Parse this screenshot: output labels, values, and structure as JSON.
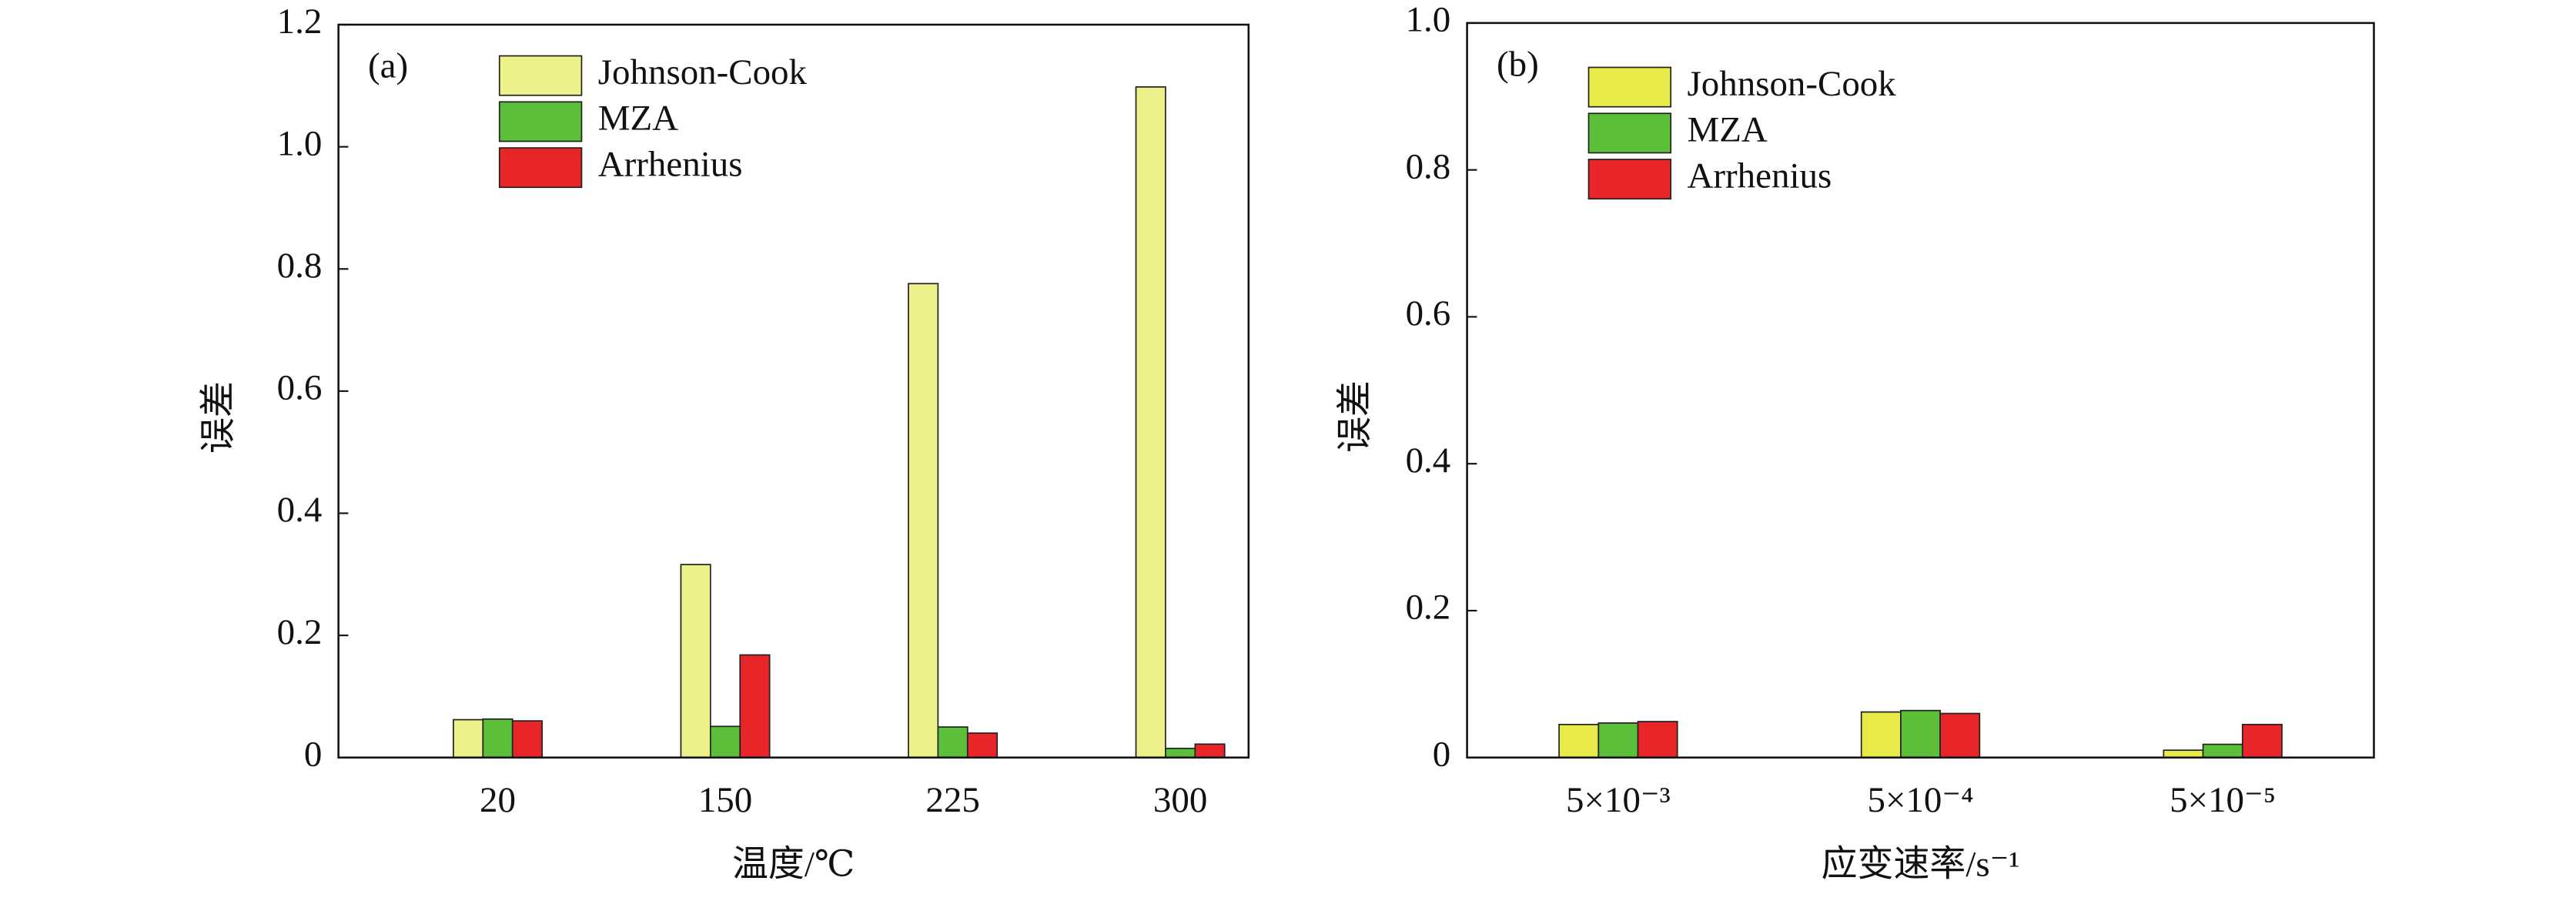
{
  "chart_data": [
    {
      "type": "bar",
      "panel": "(a)",
      "xlabel": "温度/℃",
      "ylabel": "误差",
      "categories": [
        "20",
        "150",
        "225",
        "300"
      ],
      "series": [
        {
          "name": "Johnson-Cook",
          "color": "#eef08a",
          "values": [
            0.062,
            0.316,
            0.776,
            1.098
          ]
        },
        {
          "name": "MZA",
          "color": "#5cbf3a",
          "values": [
            0.063,
            0.051,
            0.05,
            0.015
          ]
        },
        {
          "name": "Arrhenius",
          "color": "#e8262a",
          "values": [
            0.06,
            0.168,
            0.04,
            0.022
          ]
        }
      ],
      "ylim": [
        0,
        1.2
      ],
      "yticks": [
        0,
        0.2,
        0.4,
        0.6,
        0.8,
        {
          "value": 1,
          "label": "1.0"
        },
        1.2
      ],
      "legend": "upper-left"
    },
    {
      "type": "bar",
      "panel": "(b)",
      "xlabel": "应变速率/s⁻¹",
      "ylabel": "误差",
      "categories": [
        "5×10⁻³",
        "5×10⁻⁴",
        "5×10⁻⁵"
      ],
      "series": [
        {
          "name": "Johnson-Cook",
          "color": "#e8ea4a",
          "values": [
            0.045,
            0.062,
            0.01
          ]
        },
        {
          "name": "MZA",
          "color": "#5cbf3a",
          "values": [
            0.047,
            0.064,
            0.018
          ]
        },
        {
          "name": "Arrhenius",
          "color": "#e8262a",
          "values": [
            0.049,
            0.06,
            0.045
          ]
        }
      ],
      "ylim": [
        0,
        1
      ],
      "yticks": [
        0,
        0.2,
        0.4,
        0.6,
        0.8,
        {
          "value": 1,
          "label": "1.0"
        }
      ],
      "legend": "upper-left"
    }
  ]
}
